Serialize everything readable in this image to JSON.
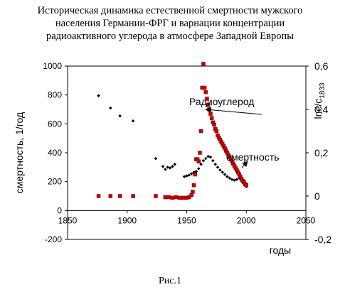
{
  "title_lines": [
    "Историческая динамика естественной смертности мужского",
    "населения Германии-ФРГ и варнации концентрации",
    "радиоактивного углерода в атмосфере Западной Европы"
  ],
  "caption": "Рис.1",
  "chart_data": {
    "type": "scatter",
    "xlabel": "годы",
    "ylabel": "смертность, 1/год",
    "y2label_main": "lnc/c",
    "y2label_sub": "1833",
    "xlim": [
      1850,
      2050
    ],
    "ylim": [
      -200,
      1000
    ],
    "y2lim": [
      -0.2,
      0.6
    ],
    "x_ticks": [
      1850,
      1900,
      1950,
      2000,
      2050
    ],
    "y_ticks": [
      -200,
      0,
      200,
      400,
      600,
      800,
      1000
    ],
    "y2_ticks": [
      {
        "label": "-0,2",
        "value": -0.2
      },
      {
        "label": "0",
        "value": 0
      },
      {
        "label": "0,2",
        "value": 0.2
      },
      {
        "label": "0,4",
        "value": 0.4
      },
      {
        "label": "0,6",
        "value": 0.6
      }
    ],
    "annotations": [
      {
        "text": "Радиоуглерод",
        "arrow_to_x": 1966,
        "arrow_to_y": 0.4
      },
      {
        "text": "смертность",
        "arrow_to_x": 2001,
        "arrow_to_y": 0.16
      }
    ],
    "series": [
      {
        "name": "смертность",
        "color": "#000000",
        "marker": "diamond",
        "x": [
          1876,
          1886,
          1894,
          1905,
          1924,
          1930,
          1932,
          1934,
          1936,
          1938,
          1940,
          1948,
          1950,
          1952,
          1954,
          1956,
          1958,
          1960,
          1962,
          1964,
          1966,
          1968,
          1970,
          1972,
          1974,
          1976,
          1978,
          1980,
          1982,
          1984,
          1986,
          1988,
          1990,
          1992,
          1994,
          1996,
          1998,
          2000
        ],
        "y": [
          795,
          710,
          655,
          620,
          360,
          305,
          285,
          300,
          295,
          305,
          320,
          235,
          240,
          245,
          255,
          265,
          270,
          290,
          320,
          345,
          360,
          375,
          370,
          345,
          320,
          300,
          280,
          265,
          250,
          235,
          225,
          215,
          210,
          215,
          225,
          205,
          185,
          165
        ]
      },
      {
        "name": "Радиоуглерод",
        "color": "#cc0000",
        "marker": "square",
        "x": [
          1876,
          1886,
          1894,
          1905,
          1924,
          1932,
          1935,
          1938,
          1941,
          1944,
          1947,
          1950,
          1952,
          1954,
          1955,
          1956,
          1957,
          1958,
          1959,
          1960,
          1961,
          1962,
          1963,
          1964,
          1965,
          1966,
          1967,
          1968,
          1969,
          1970,
          1971,
          1972,
          1973,
          1974,
          1975,
          1976,
          1977,
          1978,
          1979,
          1980,
          1981,
          1982,
          1983,
          1984,
          1985,
          1986,
          1987,
          1988,
          1989,
          1990,
          1991,
          1992,
          1993,
          1994,
          1995,
          1996,
          1997,
          1998,
          1999,
          2000
        ],
        "y": [
          0,
          0,
          0,
          0,
          0,
          -0.005,
          -0.005,
          -0.008,
          -0.005,
          -0.008,
          -0.008,
          -0.008,
          -0.005,
          0.005,
          0.02,
          0.05,
          0.1,
          0.17,
          0.17,
          0.16,
          0.2,
          0.3,
          0.5,
          0.61,
          0.5,
          0.48,
          0.45,
          0.42,
          0.4,
          0.38,
          0.36,
          0.34,
          0.33,
          0.31,
          0.3,
          0.28,
          0.27,
          0.26,
          0.25,
          0.24,
          0.23,
          0.22,
          0.21,
          0.2,
          0.19,
          0.18,
          0.17,
          0.16,
          0.15,
          0.14,
          0.13,
          0.12,
          0.11,
          0.1,
          0.09,
          0.08,
          0.07,
          0.065,
          0.055,
          0.05
        ]
      }
    ]
  }
}
